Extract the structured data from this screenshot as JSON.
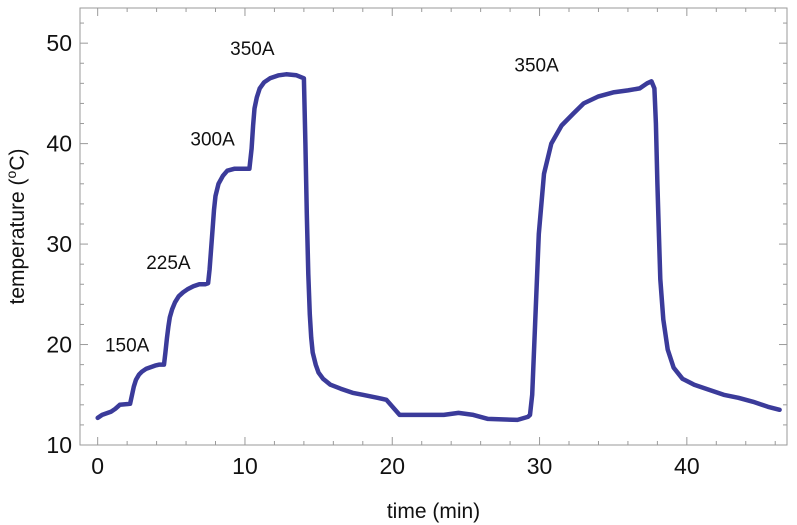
{
  "chart_data": {
    "type": "line",
    "title": "",
    "xlabel": "time (min)",
    "ylabel": "temperature (oC)",
    "ylabel_parts": {
      "prefix": "temperature (",
      "sup": "o",
      "suffix": "C)"
    },
    "xlim": [
      -1.2,
      46.8
    ],
    "ylim": [
      10,
      53.5
    ],
    "x_ticks": [
      0,
      10,
      20,
      30,
      40
    ],
    "y_ticks": [
      10,
      20,
      30,
      40,
      50
    ],
    "x_tick_labels": [
      "0",
      "10",
      "20",
      "30",
      "40"
    ],
    "y_tick_labels": [
      "10",
      "20",
      "30",
      "40",
      "50"
    ],
    "grid": false,
    "series": [
      {
        "color": "#3b3b9a",
        "x": [
          0,
          0.3,
          0.9,
          1.2,
          1.5,
          2.2,
          2.45,
          2.6,
          2.8,
          3.0,
          3.3,
          3.9,
          4.2,
          4.5,
          4.6,
          4.7,
          4.8,
          4.9,
          5.05,
          5.25,
          5.5,
          5.8,
          6.1,
          6.5,
          6.9,
          7.3,
          7.5,
          7.6,
          7.7,
          7.8,
          7.9,
          8.0,
          8.2,
          8.5,
          8.8,
          9.3,
          9.6,
          10.0,
          10.3,
          10.45,
          10.55,
          10.65,
          10.8,
          11.0,
          11.3,
          11.7,
          12.3,
          12.8,
          13.5,
          14.0,
          14.1,
          14.2,
          14.3,
          14.4,
          14.5,
          14.6,
          14.8,
          15.0,
          15.3,
          15.8,
          16.5,
          17.3,
          18.0,
          19.0,
          19.6,
          20.5,
          23.0,
          23.5,
          24.5,
          25.5,
          26.5,
          28.5,
          29.2,
          29.35,
          29.5,
          29.7,
          29.95,
          30.3,
          30.8,
          31.5,
          32.3,
          33.0,
          34.0,
          35.0,
          36.0,
          36.8,
          37.3,
          37.6,
          37.8,
          37.9,
          38.0,
          38.1,
          38.2,
          38.4,
          38.7,
          39.1,
          39.7,
          40.5,
          41.5,
          42.5,
          43.5,
          44.5,
          45.5,
          46.3
        ],
        "y": [
          12.7,
          13.0,
          13.3,
          13.6,
          14.0,
          14.1,
          15.8,
          16.5,
          17.0,
          17.3,
          17.6,
          17.9,
          18.0,
          18.0,
          19.2,
          20.6,
          21.8,
          22.7,
          23.5,
          24.2,
          24.8,
          25.2,
          25.5,
          25.8,
          26.0,
          26.0,
          26.1,
          27.5,
          29.5,
          31.5,
          33.4,
          34.8,
          36.0,
          36.8,
          37.3,
          37.5,
          37.5,
          37.5,
          37.5,
          39.5,
          41.8,
          43.5,
          44.6,
          45.5,
          46.1,
          46.5,
          46.8,
          46.9,
          46.8,
          46.5,
          40.0,
          33.0,
          27.0,
          23.0,
          20.7,
          19.2,
          18.0,
          17.2,
          16.6,
          16.0,
          15.6,
          15.2,
          15.0,
          14.7,
          14.5,
          13.0,
          13.0,
          13.0,
          13.2,
          13.0,
          12.6,
          12.5,
          12.8,
          13.0,
          15.0,
          22.0,
          31.0,
          37.0,
          40.0,
          41.8,
          43.0,
          44.0,
          44.7,
          45.1,
          45.3,
          45.5,
          46.0,
          46.2,
          45.5,
          42.0,
          36.0,
          31.0,
          26.5,
          22.5,
          19.5,
          17.7,
          16.6,
          16.0,
          15.5,
          15.0,
          14.7,
          14.3,
          13.8,
          13.5
        ]
      }
    ],
    "annotations": [
      {
        "text": "150A",
        "x": 2.0,
        "y": 19.3
      },
      {
        "text": "225A",
        "x": 4.8,
        "y": 27.5
      },
      {
        "text": "300A",
        "x": 7.8,
        "y": 39.8
      },
      {
        "text": "350A",
        "x": 10.5,
        "y": 48.8
      },
      {
        "text": "350A",
        "x": 29.8,
        "y": 47.2
      }
    ]
  }
}
